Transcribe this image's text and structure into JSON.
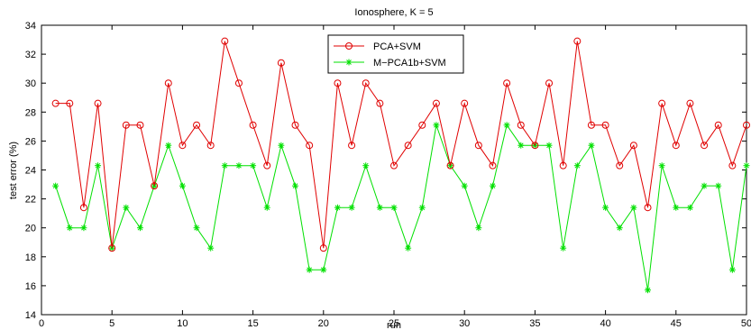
{
  "chart_data": {
    "type": "line",
    "title": "Ionosphere, K = 5",
    "xlabel": "run",
    "ylabel": "test error (%)",
    "xlim": [
      0,
      50
    ],
    "ylim": [
      14,
      34
    ],
    "xticks": [
      0,
      5,
      10,
      15,
      20,
      25,
      30,
      35,
      40,
      45,
      50
    ],
    "yticks": [
      14,
      16,
      18,
      20,
      22,
      24,
      26,
      28,
      30,
      32,
      34
    ],
    "grid": false,
    "legend_position": "top-center",
    "x": [
      1,
      2,
      3,
      4,
      5,
      6,
      7,
      8,
      9,
      10,
      11,
      12,
      13,
      14,
      15,
      16,
      17,
      18,
      19,
      20,
      21,
      22,
      23,
      24,
      25,
      26,
      27,
      28,
      29,
      30,
      31,
      32,
      33,
      34,
      35,
      36,
      37,
      38,
      39,
      40,
      41,
      42,
      43,
      44,
      45,
      46,
      47,
      48,
      49,
      50
    ],
    "series": [
      {
        "name": "PCA+SVM",
        "color": "#e00000",
        "marker": "circle",
        "values": [
          28.6,
          28.6,
          21.4,
          28.6,
          18.6,
          27.1,
          27.1,
          22.9,
          30.0,
          25.7,
          27.1,
          25.7,
          32.9,
          30.0,
          27.1,
          24.3,
          31.4,
          27.1,
          25.7,
          18.6,
          30.0,
          25.7,
          30.0,
          28.6,
          24.3,
          25.7,
          27.1,
          28.6,
          24.3,
          28.6,
          25.7,
          24.3,
          30.0,
          27.1,
          25.7,
          30.0,
          24.3,
          32.9,
          27.1,
          27.1,
          24.3,
          25.7,
          21.4,
          28.6,
          25.7,
          28.6,
          25.7,
          27.1,
          24.3,
          27.1
        ]
      },
      {
        "name": "M−PCA1b+SVM",
        "color": "#00e000",
        "marker": "star",
        "values": [
          22.9,
          20.0,
          20.0,
          24.3,
          18.6,
          21.4,
          20.0,
          22.9,
          25.7,
          22.9,
          20.0,
          18.6,
          24.3,
          24.3,
          24.3,
          21.4,
          25.7,
          22.9,
          17.1,
          17.1,
          21.4,
          21.4,
          24.3,
          21.4,
          21.4,
          18.6,
          21.4,
          27.1,
          24.3,
          22.9,
          20.0,
          22.9,
          27.1,
          25.7,
          25.7,
          25.7,
          18.6,
          24.3,
          25.7,
          21.4,
          20.0,
          21.4,
          15.7,
          24.3,
          21.4,
          21.4,
          22.9,
          22.9,
          17.1,
          24.3
        ]
      }
    ]
  }
}
